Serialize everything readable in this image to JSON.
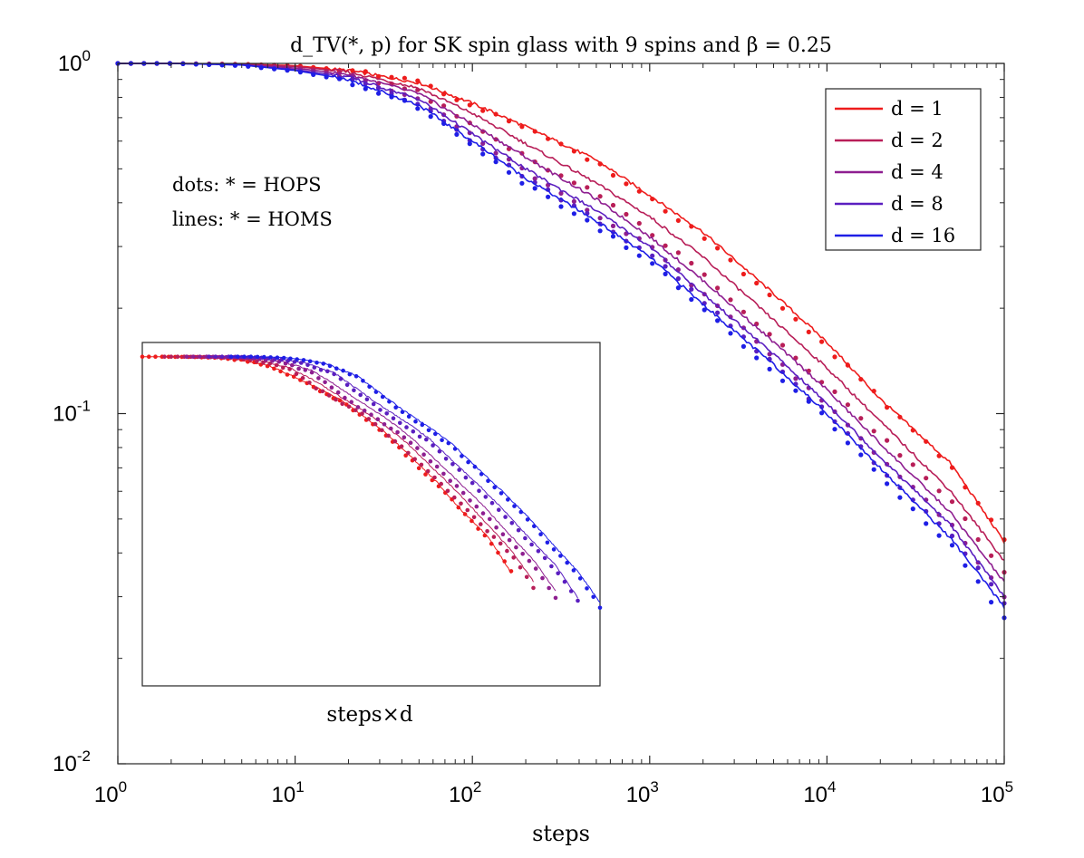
{
  "chart_data": {
    "type": "line",
    "title": "d_TV(*, p) for SK spin glass with 9 spins and β = 0.25",
    "xlabel": "steps",
    "ylabel": "",
    "xscale": "log",
    "yscale": "log",
    "xlim": [
      1,
      100000
    ],
    "ylim": [
      0.01,
      1
    ],
    "x_ticks": [
      {
        "base": "10",
        "exp": "0"
      },
      {
        "base": "10",
        "exp": "1"
      },
      {
        "base": "10",
        "exp": "2"
      },
      {
        "base": "10",
        "exp": "3"
      },
      {
        "base": "10",
        "exp": "4"
      },
      {
        "base": "10",
        "exp": "5"
      }
    ],
    "y_ticks": [
      {
        "base": "10",
        "exp": "-2"
      },
      {
        "base": "10",
        "exp": "-1"
      },
      {
        "base": "10",
        "exp": "0"
      }
    ],
    "annotations": {
      "dots": "dots:  * = HOPS",
      "lines": "lines:  * = HOMS"
    },
    "legend_position": "top-right",
    "x": [
      1,
      2,
      5,
      10,
      20,
      50,
      100,
      200,
      500,
      1000,
      2000,
      5000,
      10000,
      20000,
      50000,
      100000
    ],
    "series": [
      {
        "name": "d = 1",
        "color": "#ee1c1c",
        "lines": [
          1.0,
          1.0,
          0.995,
          0.985,
          0.955,
          0.88,
          0.77,
          0.66,
          0.53,
          0.42,
          0.33,
          0.22,
          0.16,
          0.11,
          0.072,
          0.043
        ],
        "dots": [
          1.0,
          1.0,
          0.995,
          0.985,
          0.955,
          0.88,
          0.76,
          0.65,
          0.52,
          0.41,
          0.32,
          0.21,
          0.155,
          0.11,
          0.07,
          0.044
        ]
      },
      {
        "name": "d = 2",
        "color": "#b81e58",
        "lines": [
          1.0,
          1.0,
          0.995,
          0.98,
          0.945,
          0.85,
          0.72,
          0.59,
          0.455,
          0.365,
          0.28,
          0.185,
          0.135,
          0.095,
          0.06,
          0.038
        ],
        "dots": [
          1.0,
          1.0,
          0.993,
          0.975,
          0.935,
          0.83,
          0.66,
          0.54,
          0.43,
          0.33,
          0.25,
          0.165,
          0.12,
          0.086,
          0.056,
          0.035
        ]
      },
      {
        "name": "d = 4",
        "color": "#8e1e90",
        "lines": [
          1.0,
          1.0,
          0.993,
          0.97,
          0.93,
          0.82,
          0.67,
          0.54,
          0.41,
          0.32,
          0.24,
          0.16,
          0.117,
          0.082,
          0.052,
          0.033
        ],
        "dots": [
          1.0,
          1.0,
          0.99,
          0.965,
          0.92,
          0.79,
          0.62,
          0.49,
          0.37,
          0.3,
          0.22,
          0.145,
          0.105,
          0.075,
          0.048,
          0.03
        ]
      },
      {
        "name": "d = 8",
        "color": "#5a1ec0",
        "lines": [
          1.0,
          1.0,
          0.99,
          0.96,
          0.915,
          0.79,
          0.63,
          0.5,
          0.38,
          0.3,
          0.22,
          0.148,
          0.107,
          0.075,
          0.048,
          0.03
        ],
        "dots": [
          1.0,
          1.0,
          0.988,
          0.955,
          0.905,
          0.77,
          0.6,
          0.47,
          0.355,
          0.285,
          0.21,
          0.138,
          0.1,
          0.07,
          0.045,
          0.029
        ]
      },
      {
        "name": "d = 16",
        "color": "#1e1ee6",
        "lines": [
          1.0,
          1.0,
          0.99,
          0.955,
          0.9,
          0.76,
          0.6,
          0.47,
          0.355,
          0.28,
          0.205,
          0.138,
          0.1,
          0.07,
          0.044,
          0.028
        ],
        "dots": [
          1.0,
          1.0,
          0.985,
          0.95,
          0.89,
          0.75,
          0.58,
          0.45,
          0.34,
          0.27,
          0.2,
          0.132,
          0.096,
          0.066,
          0.042,
          0.026
        ]
      }
    ],
    "inset": {
      "xlabel": "steps×d",
      "note": "same curves plotted against steps×d"
    }
  }
}
